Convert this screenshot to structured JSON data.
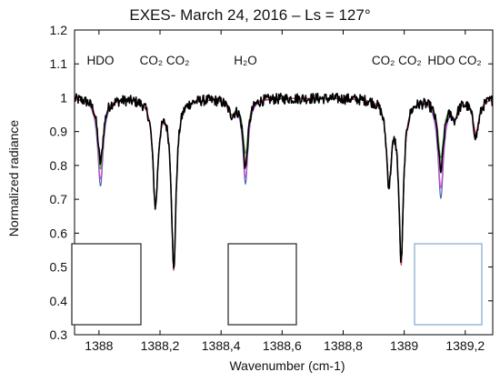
{
  "chart_data": {
    "type": "line",
    "title": "EXES- March 24, 2016 – Ls = 127°",
    "xlabel": "Wavenumber (cm-1)",
    "ylabel": "Normalized radiance",
    "xlim": [
      1387.92,
      1389.29
    ],
    "ylim": [
      0.3,
      1.2
    ],
    "x_ticks": [
      {
        "value": 1388,
        "label": "1388"
      },
      {
        "value": 1388.2,
        "label": "1388,2"
      },
      {
        "value": 1388.4,
        "label": "1388,4"
      },
      {
        "value": 1388.6,
        "label": "1388,6"
      },
      {
        "value": 1388.8,
        "label": "1388,8"
      },
      {
        "value": 1389,
        "label": "1389"
      },
      {
        "value": 1389.2,
        "label": "1389,2"
      }
    ],
    "y_ticks": [
      {
        "value": 0.3,
        "label": "0.3"
      },
      {
        "value": 0.4,
        "label": "0.4"
      },
      {
        "value": 0.5,
        "label": "0.5"
      },
      {
        "value": 0.6,
        "label": "0.6"
      },
      {
        "value": 0.7,
        "label": "0.7"
      },
      {
        "value": 0.8,
        "label": "0.8"
      },
      {
        "value": 0.9,
        "label": "0.9"
      },
      {
        "value": 1.0,
        "label": "1"
      },
      {
        "value": 1.1,
        "label": "1.1"
      },
      {
        "value": 1.2,
        "label": "1.2"
      }
    ],
    "grid": false,
    "legend": "none",
    "continuum": 1.0,
    "lines": [
      {
        "x": 1388.005,
        "width": 0.011,
        "depth": {
          "obs": 0.19,
          "red": 0.19,
          "green": 0.21,
          "blue": 0.26,
          "magenta": 0.24
        }
      },
      {
        "x": 1388.185,
        "width": 0.01,
        "depth": {
          "obs": 0.31,
          "red": 0.31,
          "green": 0.31,
          "blue": 0.31,
          "magenta": 0.31
        }
      },
      {
        "x": 1388.245,
        "width": 0.009,
        "depth": {
          "obs": 0.5,
          "red": 0.5,
          "green": 0.5,
          "blue": 0.5,
          "magenta": 0.5
        }
      },
      {
        "x": 1388.435,
        "width": 0.015,
        "depth": {
          "obs": 0.04,
          "red": 0.04,
          "green": 0.04,
          "blue": 0.04,
          "magenta": 0.04
        }
      },
      {
        "x": 1388.48,
        "width": 0.01,
        "depth": {
          "obs": 0.2,
          "red": 0.19,
          "green": 0.16,
          "blue": 0.25,
          "magenta": 0.23
        }
      },
      {
        "x": 1388.95,
        "width": 0.01,
        "depth": {
          "obs": 0.24,
          "red": 0.23,
          "green": 0.23,
          "blue": 0.23,
          "magenta": 0.23
        }
      },
      {
        "x": 1388.99,
        "width": 0.009,
        "depth": {
          "obs": 0.47,
          "red": 0.48,
          "green": 0.48,
          "blue": 0.48,
          "magenta": 0.48
        }
      },
      {
        "x": 1389.12,
        "width": 0.011,
        "depth": {
          "obs": 0.21,
          "red": 0.2,
          "green": 0.17,
          "blue": 0.29,
          "magenta": 0.26
        }
      },
      {
        "x": 1389.165,
        "width": 0.012,
        "depth": {
          "obs": 0.05,
          "red": 0.05,
          "green": 0.05,
          "blue": 0.05,
          "magenta": 0.05
        }
      },
      {
        "x": 1389.235,
        "width": 0.012,
        "depth": {
          "obs": 0.11,
          "red": 0.1,
          "green": 0.1,
          "blue": 0.1,
          "magenta": 0.1
        }
      }
    ],
    "series": [
      {
        "key": "obs",
        "color": "#000000"
      },
      {
        "key": "blue",
        "color": "#3f5fb8"
      },
      {
        "key": "magenta",
        "color": "#d94cc7"
      },
      {
        "key": "green",
        "color": "#3cb043"
      },
      {
        "key": "red",
        "color": "#e8364a"
      }
    ],
    "annotations": [
      {
        "label": "HDO",
        "x": 1388.005
      },
      {
        "label": "CO₂ CO₂",
        "x": 1388.215
      },
      {
        "label": "H₂O",
        "x": 1388.48
      },
      {
        "label": "CO₂ CO₂",
        "x": 1388.975
      },
      {
        "label": "HDO CO₂",
        "x": 1389.165
      }
    ],
    "insets": [
      {
        "name": "inset-hdo-1388",
        "x_range": [
          1387.92,
          1388.2
        ],
        "y_range": [
          0.3,
          0.575
        ],
        "border": "#333333"
      },
      {
        "name": "inset-h2o-1388-48",
        "x_range": [
          1388.45,
          1388.6
        ],
        "y_range": [
          0.3,
          0.575
        ],
        "border": "#333333"
      },
      {
        "name": "inset-hdo-1389-12",
        "x_range": [
          1389.08,
          1389.255
        ],
        "y_range": [
          0.3,
          0.575
        ],
        "border": "#8aaecf"
      }
    ]
  }
}
